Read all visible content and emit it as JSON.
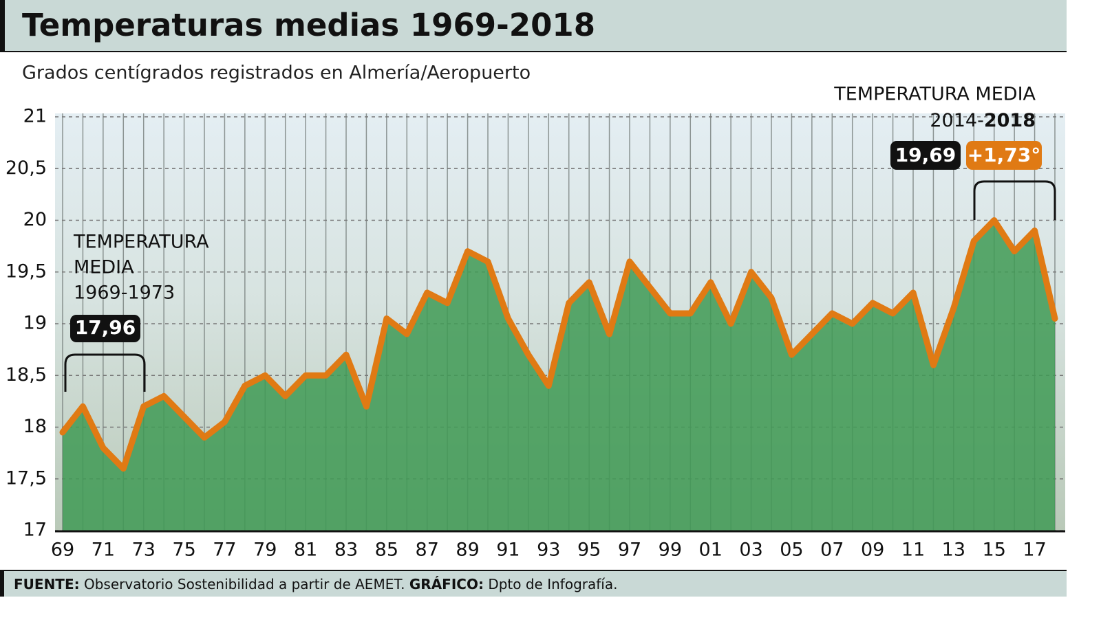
{
  "chart_data": {
    "type": "line",
    "title": "Temperaturas medias 1969-2018",
    "subtitle": "Grados centígrados registrados en Almería/Aeropuerto",
    "categories": [
      "69",
      null,
      "71",
      null,
      "73",
      null,
      "75",
      null,
      "77",
      null,
      "79",
      null,
      "81",
      null,
      "83",
      null,
      "85",
      null,
      "87",
      null,
      "89",
      null,
      "91",
      null,
      "93",
      null,
      "95",
      null,
      "97",
      null,
      "99",
      null,
      "01",
      null,
      "03",
      null,
      "05",
      null,
      "07",
      null,
      "09",
      null,
      "11",
      null,
      "13",
      null,
      "15",
      null,
      "17",
      null
    ],
    "series": [
      {
        "name": "Temperatura media",
        "color": "#e07a14",
        "values": [
          17.95,
          18.2,
          17.8,
          17.6,
          18.2,
          18.3,
          18.1,
          17.9,
          18.05,
          18.4,
          18.5,
          18.3,
          18.5,
          18.5,
          18.7,
          18.2,
          19.05,
          18.9,
          19.3,
          19.2,
          19.7,
          19.6,
          19.05,
          18.7,
          18.4,
          19.2,
          19.4,
          18.9,
          19.6,
          19.35,
          19.1,
          19.1,
          19.4,
          19.0,
          19.5,
          19.25,
          18.7,
          18.9,
          19.1,
          19.0,
          19.2,
          19.1,
          19.3,
          18.6,
          19.15,
          19.8,
          20.0,
          19.7,
          19.9,
          19.05
        ]
      }
    ],
    "area_color": "#3f9a55",
    "ylim": [
      17,
      21
    ],
    "yticks": [
      17,
      {
        "value": 17.5,
        "label": "17,5"
      },
      18,
      {
        "value": 18.5,
        "label": "18,5"
      },
      19,
      {
        "value": 19.5,
        "label": "19,5"
      },
      20,
      {
        "value": 20.5,
        "label": "20,5"
      },
      21
    ],
    "grid": true,
    "annotations": [
      {
        "lines": [
          "TEMPERATURA",
          "MEDIA",
          "1969-1973"
        ],
        "value_label": "17,96"
      },
      {
        "lines": [
          "TEMPERATURA MEDIA"
        ],
        "period": "2014-",
        "period_bold": "2018",
        "value_label": "19,69",
        "difference_label": "+1,73°"
      }
    ],
    "source_label": "FUENTE:",
    "source": "Observatorio Sostenibilidad a partir de AEMET.",
    "credit_label": "GRÁFICO:",
    "credit": "Dpto de Infografía."
  }
}
